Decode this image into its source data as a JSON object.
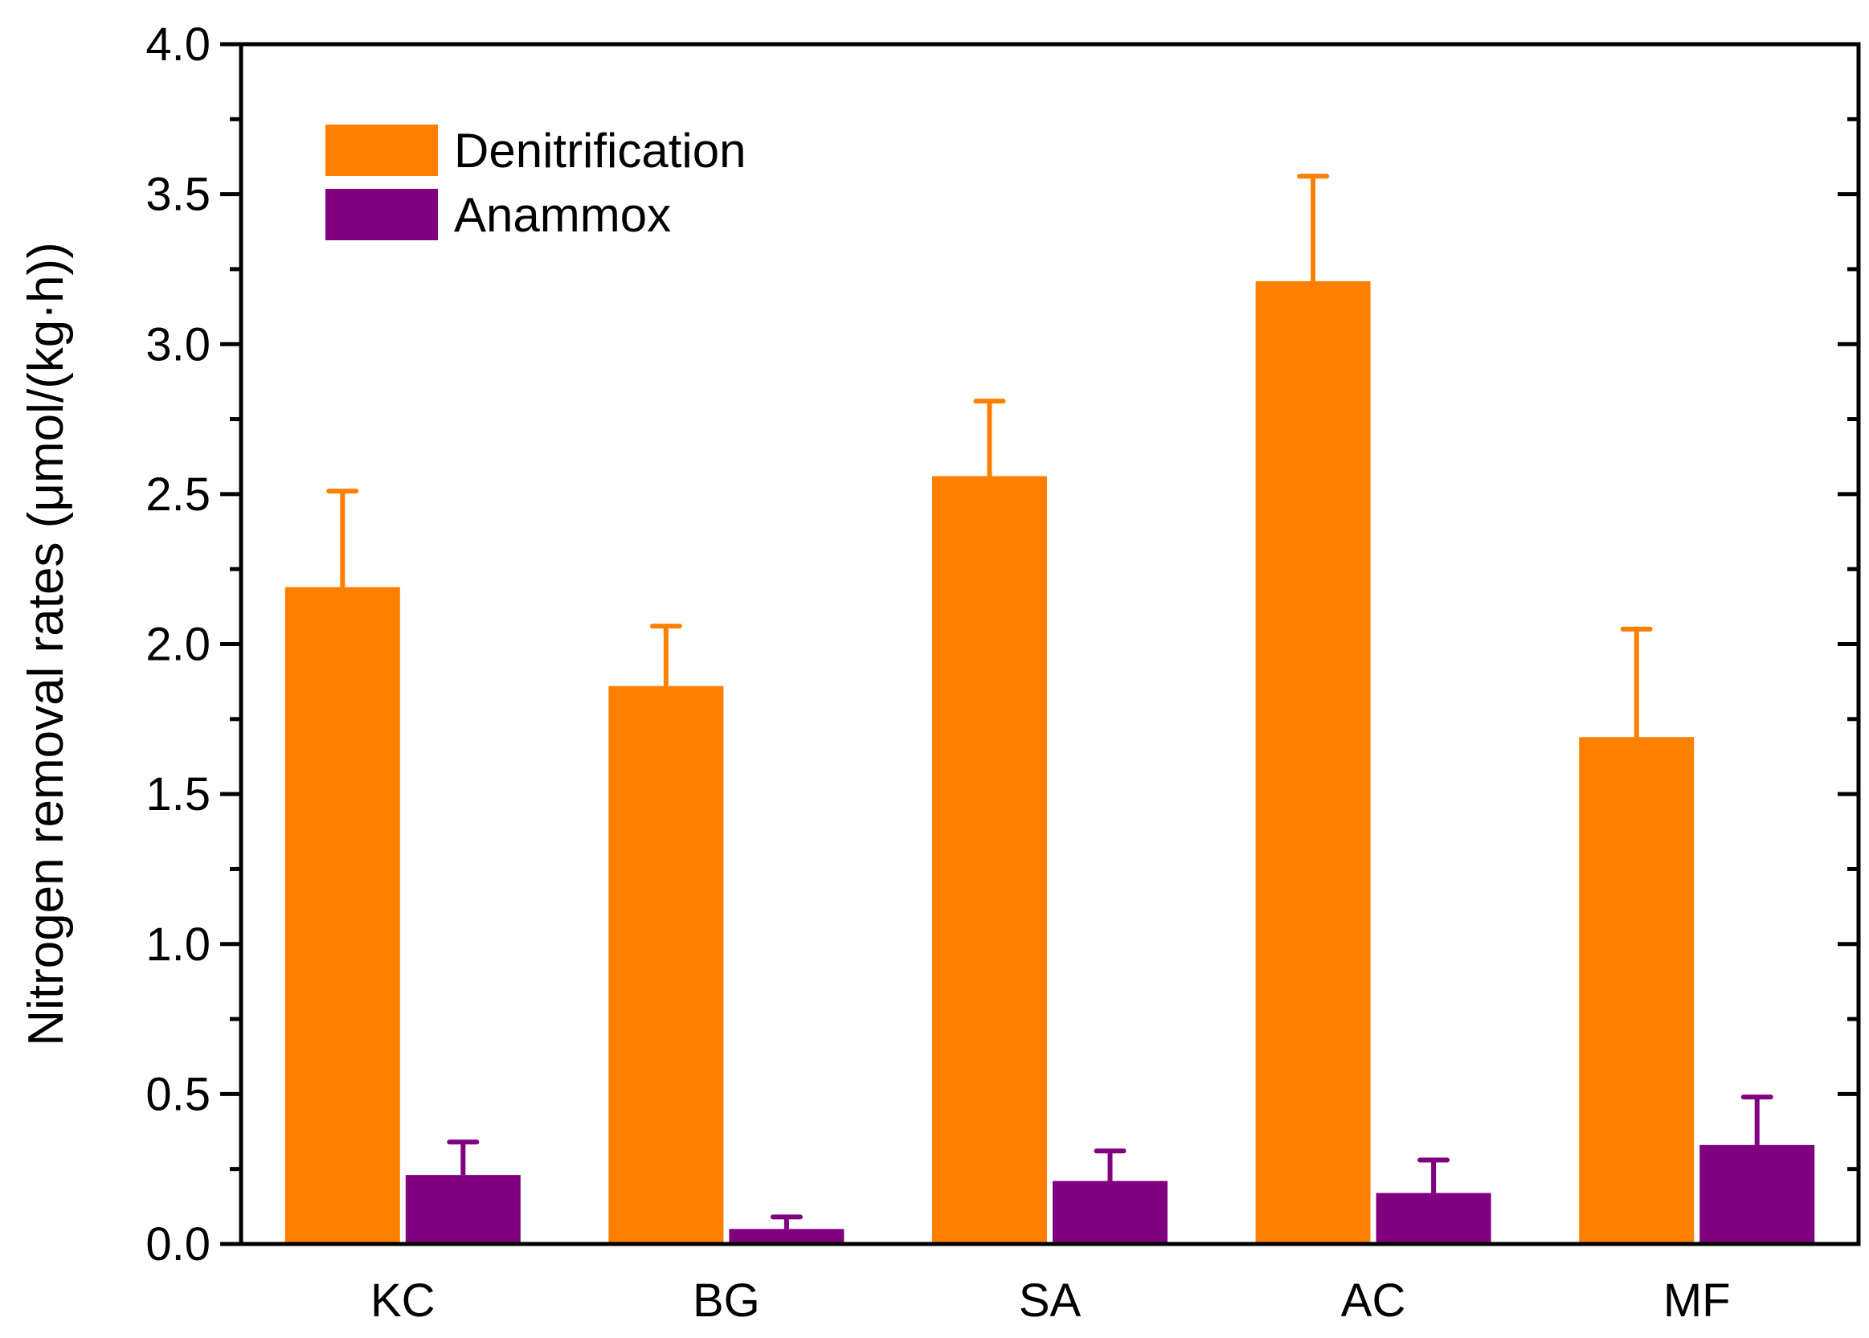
{
  "chart_data": {
    "type": "bar",
    "title": "",
    "xlabel": "",
    "ylabel": "Nitrogen removal rates (μmol/(kg·h))",
    "categories": [
      "KC",
      "BG",
      "SA",
      "AC",
      "MF"
    ],
    "ylim": [
      0,
      4.0
    ],
    "yticks": [
      "0.0",
      "0.5",
      "1.0",
      "1.5",
      "2.0",
      "2.5",
      "3.0",
      "3.5",
      "4.0"
    ],
    "grid": false,
    "legend_position": "top-left",
    "series": [
      {
        "name": "Denitrification",
        "color": "#ff8000",
        "values": [
          2.19,
          1.86,
          2.56,
          3.21,
          1.69
        ],
        "errors": [
          0.32,
          0.2,
          0.25,
          0.35,
          0.36
        ]
      },
      {
        "name": "Anammox",
        "color": "#800080",
        "values": [
          0.23,
          0.05,
          0.21,
          0.17,
          0.33
        ],
        "errors": [
          0.11,
          0.04,
          0.1,
          0.11,
          0.16
        ]
      }
    ]
  }
}
